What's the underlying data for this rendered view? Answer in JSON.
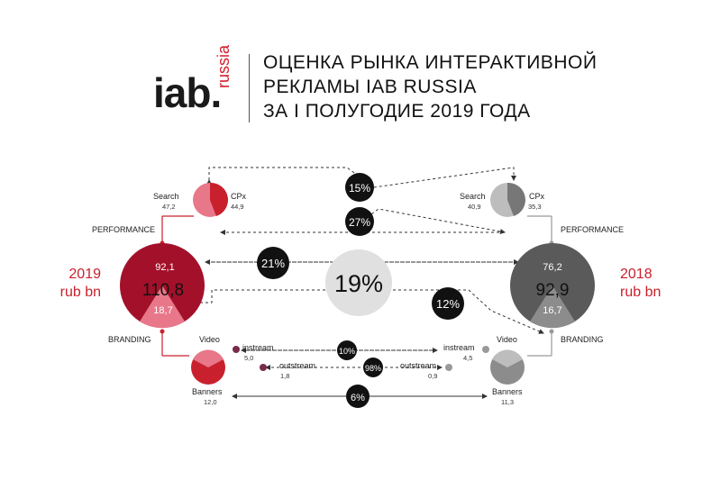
{
  "header": {
    "logo_text": "iab.",
    "logo_sub": "russia",
    "title_lines": [
      "ОЦЕНКА РЫНКА ИНТЕРАКТИВНОЙ",
      "РЕКЛАМЫ IAB RUSSIA",
      "ЗА I ПОЛУГОДИЕ 2019 ГОДА"
    ]
  },
  "colors": {
    "red": "#c9202d",
    "dark_red": "#a3102a",
    "pink": "#e8778a",
    "purple": "#7a2a4a",
    "dark_gray": "#5a5a5a",
    "mid_gray": "#8c8c8c",
    "light_gray": "#bdbdbd",
    "black": "#111111"
  },
  "left": {
    "year": "2019",
    "unit": "rub bn",
    "total": "110,8",
    "performance_value": "92,1",
    "branding_value": "18,7",
    "performance_label": "PERFORMANCE",
    "branding_label": "BRANDING",
    "search_label": "Search",
    "search_value": "47,2",
    "cpx_label": "CPx",
    "cpx_value": "44,9",
    "video_label": "Video",
    "banners_label": "Banners",
    "banners_value": "12,0",
    "instream_label": "instream",
    "instream_value": "5,0",
    "outstream_label": "outstream",
    "outstream_value": "1,8"
  },
  "right": {
    "year": "2018",
    "unit": "rub bn",
    "total": "92,9",
    "performance_value": "76,2",
    "branding_value": "16,7",
    "performance_label": "PERFORMANCE",
    "branding_label": "BRANDING",
    "search_label": "Search",
    "search_value": "40,9",
    "cpx_label": "CPx",
    "cpx_value": "35,3",
    "video_label": "Video",
    "banners_label": "Banners",
    "banners_value": "11,3",
    "instream_label": "instream",
    "instream_value": "4,5",
    "outstream_label": "outstream",
    "outstream_value": "0,9"
  },
  "growth": {
    "total": "19%",
    "performance": "21%",
    "branding": "12%",
    "search": "15%",
    "cpx": "27%",
    "instream": "10%",
    "outstream": "98%",
    "banners": "6%"
  }
}
